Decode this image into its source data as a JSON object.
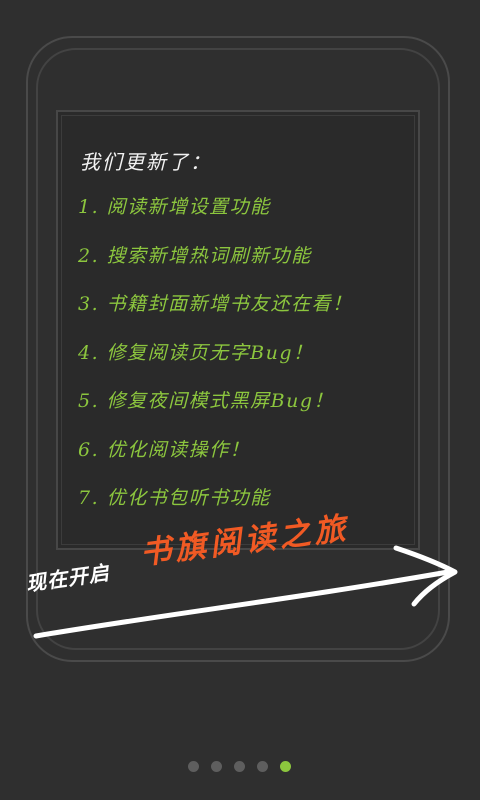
{
  "intro": {
    "heading": "我们更新了：",
    "items": [
      "1. 阅读新增设置功能",
      "2. 搜索新增热词刷新功能",
      "3. 书籍封面新增书友还在看！",
      "4. 修复阅读页无字Bug！",
      "5. 修复夜间模式黑屏Bug！",
      "6. 优化阅读操作！",
      "7. 优化书包听书功能"
    ]
  },
  "cta": {
    "lead": "现在开启",
    "brand": "书旗阅读之旅"
  },
  "pager": {
    "total": 5,
    "active_index": 4
  },
  "colors": {
    "background": "#2f2f2f",
    "item_text": "#8cc63e",
    "heading_text": "#f2f2f2",
    "brand_text": "#f15a24",
    "active_dot": "#8cc63e",
    "inactive_dot": "#5e5e5e"
  }
}
